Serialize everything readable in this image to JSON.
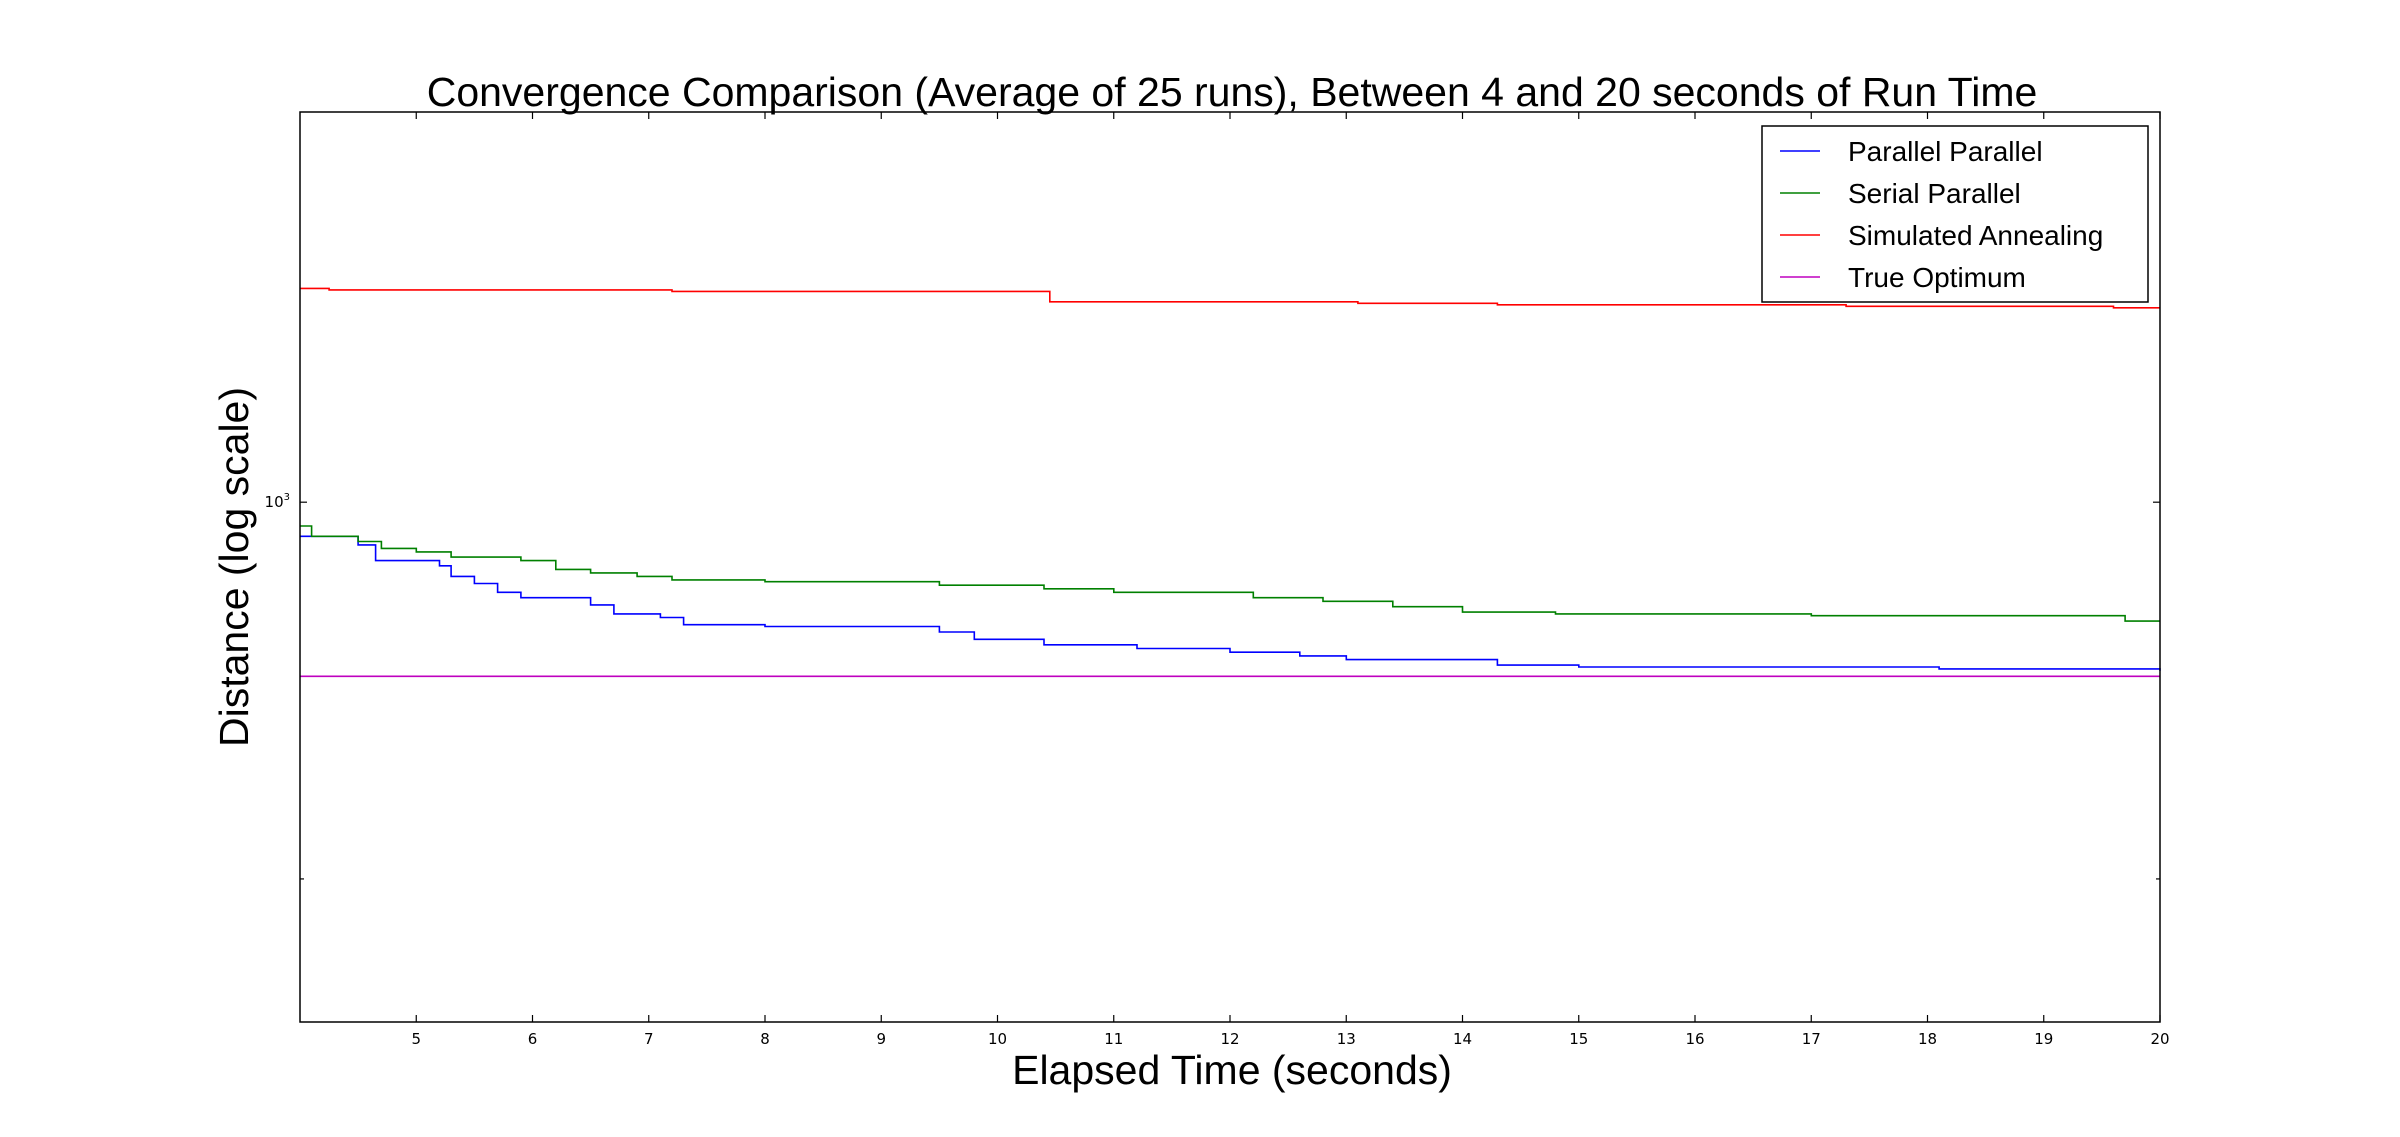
{
  "chart_data": {
    "type": "line",
    "title": "Convergence Comparison (Average of 25 runs), Between 4 and 20 seconds of Run Time",
    "xlabel": "Elapsed Time (seconds)",
    "ylabel": "Distance (log scale)",
    "xlim": [
      4,
      20
    ],
    "ylim": [
      735,
      1260
    ],
    "yscale": "log",
    "x_ticks": [
      "5",
      "6",
      "7",
      "8",
      "9",
      "10",
      "11",
      "12",
      "13",
      "14",
      "15",
      "16",
      "17",
      "18",
      "19",
      "20"
    ],
    "y_tick_label": {
      "base": "10",
      "exponent": "3",
      "value": 1000
    },
    "legend_position": "top-right",
    "grid": false,
    "series": [
      {
        "name": "Parallel Parallel",
        "color": "#0000ff",
        "step": true,
        "points": [
          [
            4.0,
            980
          ],
          [
            4.5,
            975
          ],
          [
            4.65,
            966
          ],
          [
            5.2,
            963
          ],
          [
            5.3,
            957
          ],
          [
            5.5,
            953
          ],
          [
            5.7,
            948
          ],
          [
            5.9,
            945
          ],
          [
            6.5,
            941
          ],
          [
            6.7,
            936
          ],
          [
            7.1,
            934
          ],
          [
            7.3,
            930
          ],
          [
            8.0,
            929
          ],
          [
            9.5,
            926
          ],
          [
            9.8,
            922
          ],
          [
            10.4,
            919
          ],
          [
            11.2,
            917
          ],
          [
            12.0,
            915
          ],
          [
            12.6,
            913
          ],
          [
            13.0,
            911
          ],
          [
            14.3,
            908
          ],
          [
            15.0,
            907
          ],
          [
            17.0,
            907
          ],
          [
            18.1,
            906
          ],
          [
            20.0,
            905
          ]
        ]
      },
      {
        "name": "Serial Parallel",
        "color": "#008000",
        "step": true,
        "points": [
          [
            4.0,
            986
          ],
          [
            4.1,
            980
          ],
          [
            4.5,
            977
          ],
          [
            4.7,
            973
          ],
          [
            5.0,
            971
          ],
          [
            5.3,
            968
          ],
          [
            5.9,
            966
          ],
          [
            6.2,
            961
          ],
          [
            6.5,
            959
          ],
          [
            6.9,
            957
          ],
          [
            7.2,
            955
          ],
          [
            8.0,
            954
          ],
          [
            9.5,
            952
          ],
          [
            10.4,
            950
          ],
          [
            11.0,
            948
          ],
          [
            12.2,
            945
          ],
          [
            12.8,
            943
          ],
          [
            13.4,
            940
          ],
          [
            14.0,
            937
          ],
          [
            14.8,
            936
          ],
          [
            17.0,
            935
          ],
          [
            19.7,
            932
          ],
          [
            20.0,
            932
          ]
        ]
      },
      {
        "name": "Simulated Annealing",
        "color": "#ff0000",
        "step": true,
        "points": [
          [
            4.0,
            1135
          ],
          [
            4.25,
            1134
          ],
          [
            7.2,
            1133
          ],
          [
            10.45,
            1126
          ],
          [
            13.1,
            1125
          ],
          [
            14.3,
            1124
          ],
          [
            17.3,
            1123
          ],
          [
            19.6,
            1122
          ],
          [
            20.0,
            1122
          ]
        ]
      },
      {
        "name": "True Optimum",
        "color": "#bf00bf",
        "step": false,
        "points": [
          [
            4.0,
            902
          ],
          [
            20.0,
            902
          ]
        ]
      }
    ]
  }
}
